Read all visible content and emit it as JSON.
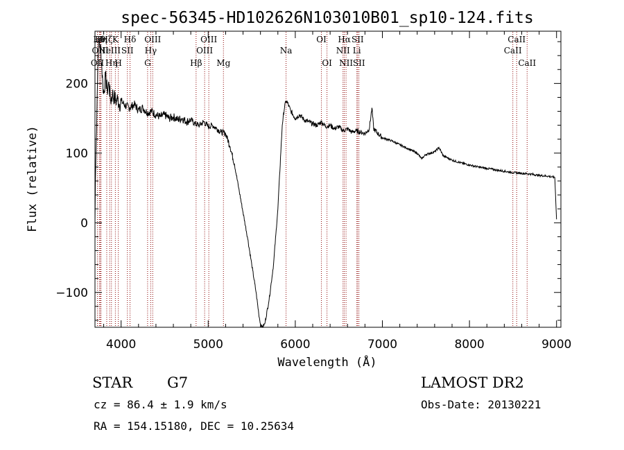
{
  "chart_data": {
    "type": "line",
    "title": "spec-56345-HD102626N103010B01_sp10-124.fits",
    "xlabel": "Wavelength (Å)",
    "ylabel": "Flux (relative)",
    "xlim": [
      3700,
      9050
    ],
    "ylim": [
      -150,
      275
    ],
    "grid": false,
    "x_ticks": [
      4000,
      5000,
      6000,
      7000,
      8000,
      9000
    ],
    "y_ticks": [
      -100,
      0,
      100,
      200
    ],
    "x_tick_labels": [
      "4000",
      "5000",
      "6000",
      "7000",
      "8000",
      "9000"
    ],
    "y_tick_labels": [
      "−100",
      "0",
      "100",
      "200"
    ],
    "series": [
      {
        "x": [
          3700,
          3705,
          3715,
          3725,
          3735,
          3745,
          3760,
          3775,
          3790,
          3800,
          3820,
          3840,
          3860,
          3880,
          3900,
          3920,
          3940,
          3960,
          3980,
          4000,
          4050,
          4100,
          4150,
          4200,
          4250,
          4300,
          4350,
          4400,
          4450,
          4500,
          4550,
          4600,
          4650,
          4700,
          4750,
          4800,
          4850,
          4900,
          4950,
          5000,
          5050,
          5100,
          5150,
          5200,
          5250,
          5300,
          5350,
          5400,
          5450,
          5500,
          5550,
          5580,
          5600,
          5620,
          5650,
          5700,
          5750,
          5800,
          5850,
          5880,
          5900,
          5950,
          6000,
          6050,
          6100,
          6150,
          6200,
          6250,
          6300,
          6350,
          6400,
          6450,
          6500,
          6550,
          6600,
          6650,
          6700,
          6750,
          6800,
          6850,
          6880,
          6900,
          6950,
          7000,
          7100,
          7200,
          7300,
          7400,
          7450,
          7500,
          7600,
          7650,
          7700,
          7800,
          7900,
          8000,
          8100,
          8200,
          8300,
          8400,
          8500,
          8600,
          8700,
          8800,
          8900,
          8980,
          9000
        ],
        "y": [
          0,
          60,
          120,
          180,
          240,
          265,
          255,
          230,
          200,
          185,
          210,
          190,
          200,
          175,
          185,
          180,
          175,
          178,
          170,
          175,
          168,
          165,
          170,
          162,
          165,
          158,
          160,
          155,
          152,
          155,
          150,
          152,
          148,
          150,
          145,
          148,
          142,
          140,
          145,
          138,
          140,
          135,
          130,
          128,
          110,
          85,
          50,
          15,
          -20,
          -60,
          -100,
          -130,
          -145,
          -150,
          -145,
          -110,
          -60,
          20,
          140,
          170,
          175,
          160,
          150,
          155,
          148,
          145,
          142,
          140,
          145,
          138,
          140,
          135,
          138,
          132,
          135,
          130,
          132,
          130,
          128,
          135,
          165,
          135,
          128,
          122,
          118,
          112,
          106,
          100,
          92,
          98,
          102,
          108,
          96,
          90,
          86,
          83,
          80,
          78,
          76,
          74,
          72,
          71,
          70,
          68,
          67,
          65,
          5
        ]
      }
    ],
    "spectral_lines": [
      {
        "x": 3728,
        "label": "OII",
        "row": 3
      },
      {
        "x": 3750,
        "label": "Hθ",
        "row": 1
      },
      {
        "x": 3760,
        "label": "OIII",
        "row": 2
      },
      {
        "x": 3770,
        "label": "Hη",
        "row": 1
      },
      {
        "x": 3835,
        "label": "Hζ",
        "row": 1
      },
      {
        "x": 3869,
        "label": "NeIII",
        "row": 2
      },
      {
        "x": 3889,
        "label": "Hη",
        "row": 3
      },
      {
        "x": 3934,
        "label": "K",
        "row": 1
      },
      {
        "x": 3968,
        "label": "H",
        "row": 3
      },
      {
        "x": 4072,
        "label": "SII",
        "row": 2
      },
      {
        "x": 4102,
        "label": "Hδ",
        "row": 1
      },
      {
        "x": 4304,
        "label": "G",
        "row": 3
      },
      {
        "x": 4340,
        "label": "Hγ",
        "row": 2
      },
      {
        "x": 4363,
        "label": "OIII",
        "row": 1
      },
      {
        "x": 4861,
        "label": "Hβ",
        "row": 3
      },
      {
        "x": 4959,
        "label": "OIII",
        "row": 2
      },
      {
        "x": 5007,
        "label": "OIII",
        "row": 1
      },
      {
        "x": 5175,
        "label": "Mg",
        "row": 3
      },
      {
        "x": 5894,
        "label": "Na",
        "row": 2
      },
      {
        "x": 6300,
        "label": "OI",
        "row": 1
      },
      {
        "x": 6364,
        "label": "OI",
        "row": 3
      },
      {
        "x": 6548,
        "label": "NII",
        "row": 2
      },
      {
        "x": 6563,
        "label": "Hα",
        "row": 1
      },
      {
        "x": 6583,
        "label": "NII",
        "row": 3
      },
      {
        "x": 6707,
        "label": "Li",
        "row": 2
      },
      {
        "x": 6716,
        "label": "SII",
        "row": 1
      },
      {
        "x": 6731,
        "label": "SII",
        "row": 3
      },
      {
        "x": 8498,
        "label": "CaII",
        "row": 2
      },
      {
        "x": 8542,
        "label": "CaII",
        "row": 1
      },
      {
        "x": 8662,
        "label": "CaII",
        "row": 3
      }
    ],
    "line_color": "#8b0000"
  },
  "info": {
    "object_class": "STAR",
    "subclass": "G7",
    "survey": "LAMOST DR2",
    "redshift_line": "cz = 86.4 ± 1.9 km/s",
    "obs_date_line": "Obs-Date: 20130221",
    "coords_line": "RA = 154.15180, DEC =  10.25634"
  }
}
